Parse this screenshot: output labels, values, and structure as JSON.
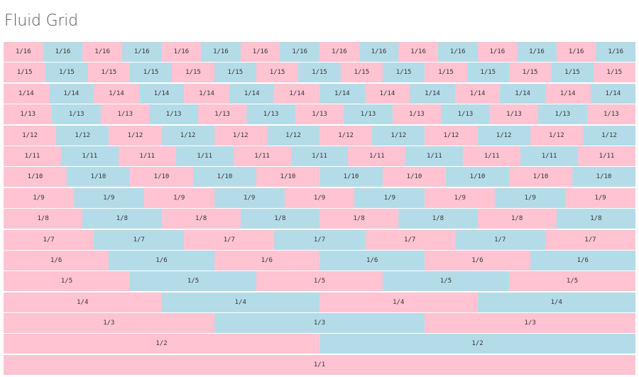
{
  "page": {
    "title": "Fluid Grid"
  },
  "colors": {
    "pink": "#ffc3d2",
    "blue": "#b4dce8"
  },
  "rows": [
    {
      "label": "1/16",
      "count": 16
    },
    {
      "label": "1/15",
      "count": 15
    },
    {
      "label": "1/14",
      "count": 14
    },
    {
      "label": "1/13",
      "count": 13
    },
    {
      "label": "1/12",
      "count": 12
    },
    {
      "label": "1/11",
      "count": 11
    },
    {
      "label": "1/10",
      "count": 10
    },
    {
      "label": "1/9",
      "count": 9
    },
    {
      "label": "1/8",
      "count": 8
    },
    {
      "label": "1/7",
      "count": 7
    },
    {
      "label": "1/6",
      "count": 6
    },
    {
      "label": "1/5",
      "count": 5
    },
    {
      "label": "1/4",
      "count": 4
    },
    {
      "label": "1/3",
      "count": 3
    },
    {
      "label": "1/2",
      "count": 2
    },
    {
      "label": "1/1",
      "count": 1
    }
  ]
}
